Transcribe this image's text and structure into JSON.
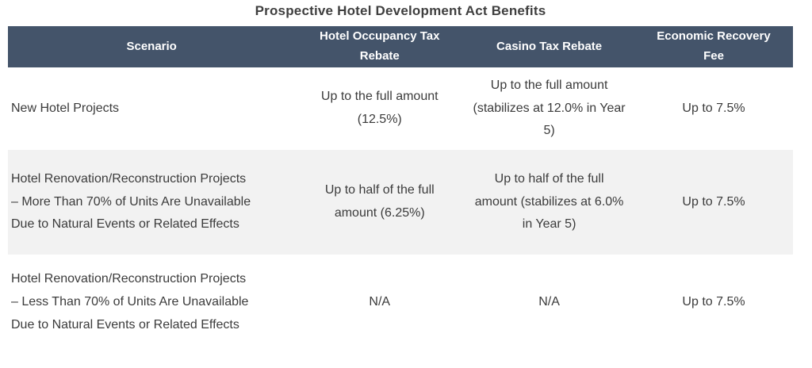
{
  "colors": {
    "header_bg": "#44546a",
    "header_text": "#ffffff",
    "alt_row_bg": "#f2f2f2",
    "body_text": "#3b3b3b",
    "title_text": "#3f3f3f"
  },
  "chart_data": {
    "type": "table",
    "title": "Prospective Hotel Development Act Benefits",
    "columns": [
      "Scenario",
      "Hotel Occupancy Tax Rebate",
      "Casino Tax Rebate",
      "Economic Recovery Fee"
    ],
    "rows": [
      [
        "New Hotel Projects",
        "Up to the full amount (12.5%)",
        "Up to the full amount (stabilizes at 12.0% in Year 5)",
        "Up to 7.5%"
      ],
      [
        "Hotel Renovation/Reconstruction Projects – More Than 70% of Units Are Unavailable Due to Natural Events or Related Effects",
        "Up to half of the full amount (6.25%)",
        "Up to half of the full amount (stabilizes at 6.0% in Year 5)",
        "Up to 7.5%"
      ],
      [
        "Hotel Renovation/Reconstruction Projects – Less Than 70% of Units Are Unavailable Due to Natural Events or Related Effects",
        "N/A",
        "N/A",
        "Up to 7.5%"
      ]
    ],
    "layout": {
      "header_style": "dark-banded",
      "row_banding": [
        "white",
        "light-gray",
        "white"
      ],
      "first_column_align": "left",
      "data_columns_align": "center",
      "grid": false
    }
  }
}
